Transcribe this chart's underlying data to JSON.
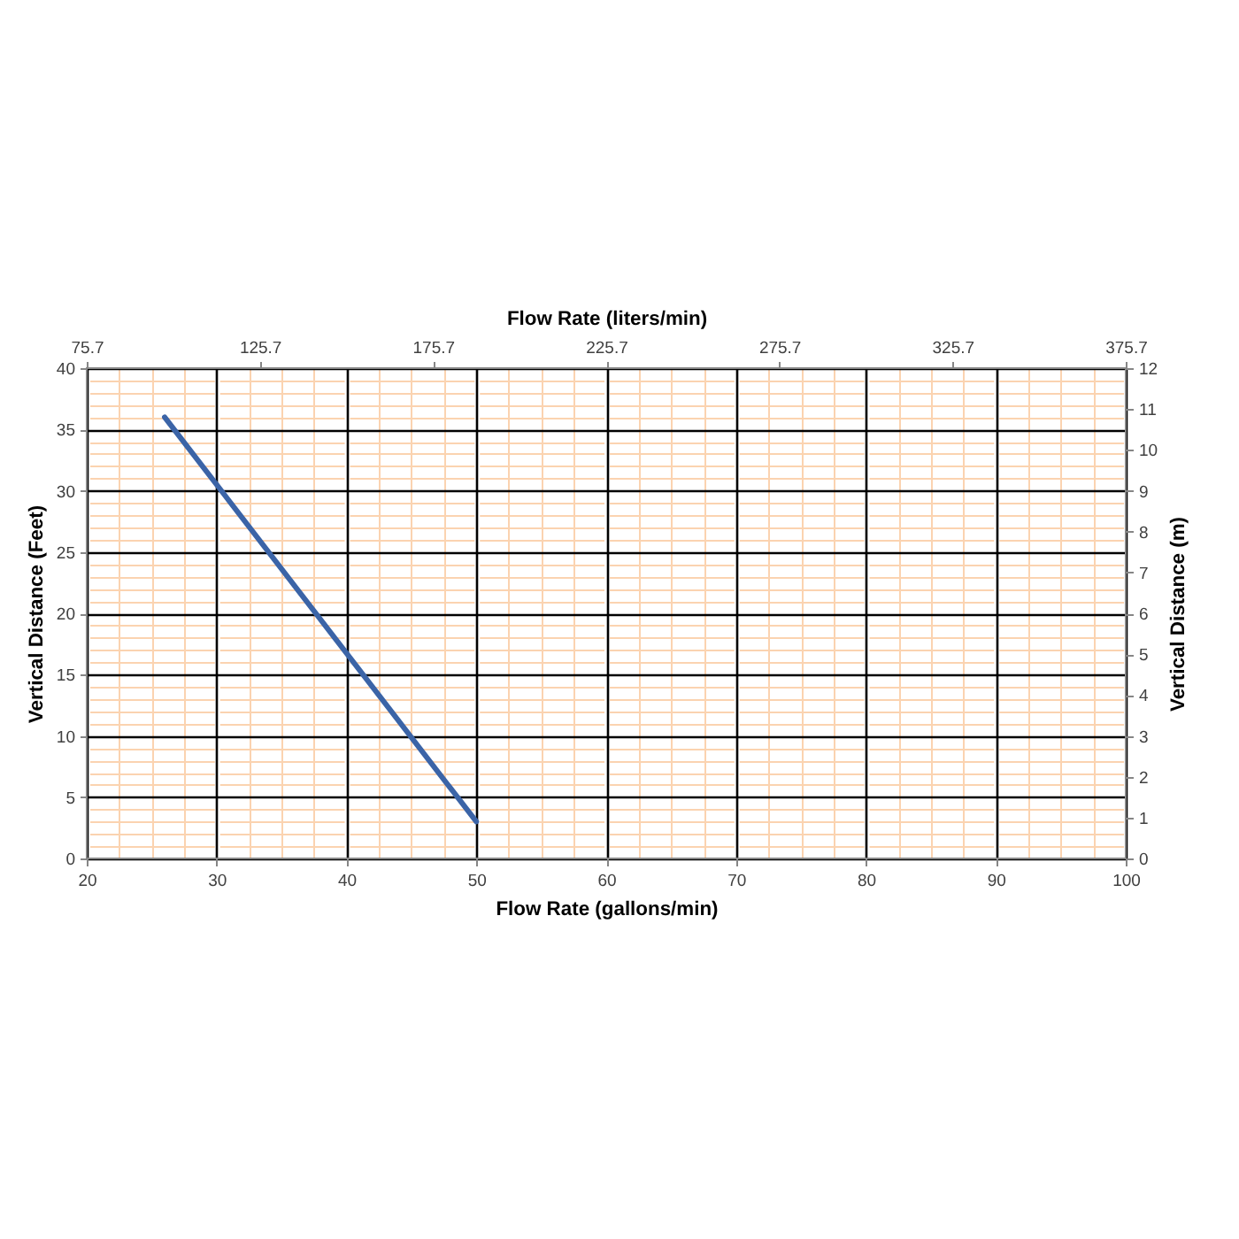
{
  "chart_data": {
    "type": "line",
    "xlabel": "Flow Rate (gallons/min)",
    "x2label": "Flow Rate (liters/min)",
    "ylabel": "Vertical Distance (Feet)",
    "y2label": "Vertical Distance (m)",
    "series": [
      {
        "color": "#3b64a7",
        "x": [
          26,
          50
        ],
        "values": [
          36,
          3
        ]
      }
    ],
    "xlim": [
      20,
      100
    ],
    "xticks": [
      20,
      {
        "value": 22.5,
        "label": null
      },
      {
        "value": 25,
        "label": null
      },
      {
        "value": 27.5,
        "label": null
      },
      30,
      {
        "value": 32.5,
        "label": null
      },
      {
        "value": 35,
        "label": null
      },
      {
        "value": 37.5,
        "label": null
      },
      40,
      {
        "value": 42.5,
        "label": null
      },
      {
        "value": 45,
        "label": null
      },
      {
        "value": 47.5,
        "label": null
      },
      50,
      {
        "value": 52.5,
        "label": null
      },
      {
        "value": 55,
        "label": null
      },
      {
        "value": 57.5,
        "label": null
      },
      60,
      {
        "value": 62.5,
        "label": null
      },
      {
        "value": 65,
        "label": null
      },
      {
        "value": 67.5,
        "label": null
      },
      70,
      {
        "value": 72.5,
        "label": null
      },
      {
        "value": 75,
        "label": null
      },
      {
        "value": 77.5,
        "label": null
      },
      80,
      {
        "value": 82.5,
        "label": null
      },
      {
        "value": 85,
        "label": null
      },
      {
        "value": 87.5,
        "label": null
      },
      90,
      {
        "value": 92.5,
        "label": null
      },
      {
        "value": 95,
        "label": null
      },
      {
        "value": 97.5,
        "label": null
      },
      100
    ],
    "x2lim": [
      75.7,
      375.7
    ],
    "x2ticks": [
      75.7,
      125.7,
      175.7,
      225.7,
      275.7,
      325.7,
      375.7
    ],
    "ylim": [
      0,
      40
    ],
    "yticks": [
      0,
      {
        "value": 1,
        "label": null
      },
      {
        "value": 2,
        "label": null
      },
      {
        "value": 3,
        "label": null
      },
      {
        "value": 4,
        "label": null
      },
      5,
      {
        "value": 6,
        "label": null
      },
      {
        "value": 7,
        "label": null
      },
      {
        "value": 8,
        "label": null
      },
      {
        "value": 9,
        "label": null
      },
      10,
      {
        "value": 11,
        "label": null
      },
      {
        "value": 12,
        "label": null
      },
      {
        "value": 13,
        "label": null
      },
      {
        "value": 14,
        "label": null
      },
      15,
      {
        "value": 16,
        "label": null
      },
      {
        "value": 17,
        "label": null
      },
      {
        "value": 18,
        "label": null
      },
      {
        "value": 19,
        "label": null
      },
      20,
      {
        "value": 21,
        "label": null
      },
      {
        "value": 22,
        "label": null
      },
      {
        "value": 23,
        "label": null
      },
      {
        "value": 24,
        "label": null
      },
      25,
      {
        "value": 26,
        "label": null
      },
      {
        "value": 27,
        "label": null
      },
      {
        "value": 28,
        "label": null
      },
      {
        "value": 29,
        "label": null
      },
      30,
      {
        "value": 31,
        "label": null
      },
      {
        "value": 32,
        "label": null
      },
      {
        "value": 33,
        "label": null
      },
      {
        "value": 34,
        "label": null
      },
      35,
      {
        "value": 36,
        "label": null
      },
      {
        "value": 37,
        "label": null
      },
      {
        "value": 38,
        "label": null
      },
      {
        "value": 39,
        "label": null
      },
      40
    ],
    "y2lim": [
      0,
      12
    ],
    "y2ticks": [
      0,
      1,
      2,
      3,
      4,
      5,
      6,
      7,
      8,
      9,
      10,
      11,
      12
    ],
    "grid": true,
    "marker": "none",
    "line_style": "solid"
  }
}
